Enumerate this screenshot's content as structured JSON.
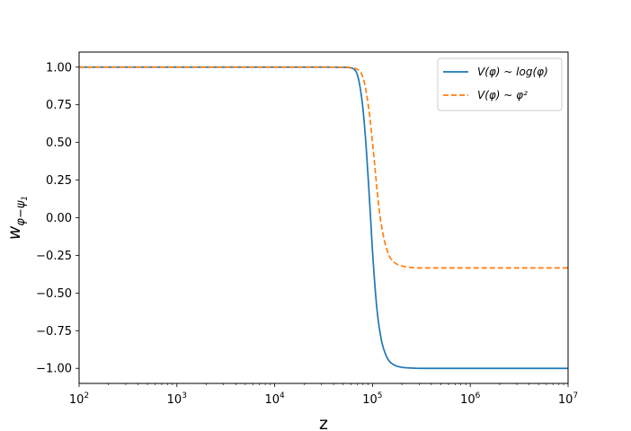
{
  "chart_data": {
    "type": "line",
    "xscale": "log",
    "xlabel": "z",
    "ylabel": "w_{φ−ψ1}",
    "xlim": [
      100,
      10000000
    ],
    "ylim": [
      -1.1,
      1.1
    ],
    "grid": false,
    "legend_position": "top-right",
    "x_ticks": [
      {
        "value": 100,
        "base": "10",
        "exp": "2"
      },
      {
        "value": 1000,
        "base": "10",
        "exp": "3"
      },
      {
        "value": 10000,
        "base": "10",
        "exp": "4"
      },
      {
        "value": 100000,
        "base": "10",
        "exp": "5"
      },
      {
        "value": 1000000,
        "base": "10",
        "exp": "6"
      },
      {
        "value": 10000000,
        "base": "10",
        "exp": "7"
      }
    ],
    "y_ticks": [
      {
        "value": 1.0,
        "label": "1.00"
      },
      {
        "value": 0.75,
        "label": "0.75"
      },
      {
        "value": 0.5,
        "label": "0.50"
      },
      {
        "value": 0.25,
        "label": "0.25"
      },
      {
        "value": 0.0,
        "label": "0.00"
      },
      {
        "value": -0.25,
        "label": "−0.25"
      },
      {
        "value": -0.5,
        "label": "−0.50"
      },
      {
        "value": -0.75,
        "label": "−0.75"
      },
      {
        "value": -1.0,
        "label": "−1.00"
      }
    ],
    "series": [
      {
        "name": "V(φ) ~ log(φ)",
        "color": "#1f77b4",
        "dash": "solid",
        "x": [
          100,
          1000,
          10000,
          30000,
          50000,
          60000,
          65000,
          70000,
          75000,
          80000,
          85000,
          90000,
          95000,
          100000,
          105000,
          110000,
          115000,
          120000,
          125000,
          130000,
          140000,
          150000,
          170000,
          200000,
          250000,
          300000,
          400000,
          1000000,
          10000000
        ],
        "y": [
          1.0,
          1.0,
          1.0,
          1.0,
          0.999,
          0.995,
          0.985,
          0.95,
          0.86,
          0.72,
          0.52,
          0.28,
          0.03,
          -0.22,
          -0.42,
          -0.58,
          -0.69,
          -0.77,
          -0.83,
          -0.87,
          -0.925,
          -0.955,
          -0.98,
          -0.993,
          -0.998,
          -1.0,
          -1.0,
          -1.0,
          -1.0
        ]
      },
      {
        "name": "V(φ) ~ φ²",
        "color": "#ff7f0e",
        "dash": "dashed",
        "x": [
          100,
          1000,
          10000,
          30000,
          50000,
          60000,
          70000,
          75000,
          80000,
          85000,
          90000,
          95000,
          100000,
          105000,
          110000,
          115000,
          120000,
          125000,
          130000,
          140000,
          150000,
          170000,
          200000,
          250000,
          300000,
          400000,
          1000000,
          10000000
        ],
        "y": [
          1.0,
          1.0,
          1.0,
          1.0,
          0.999,
          0.997,
          0.985,
          0.97,
          0.93,
          0.86,
          0.76,
          0.64,
          0.5,
          0.36,
          0.22,
          0.1,
          0.0,
          -0.07,
          -0.13,
          -0.21,
          -0.26,
          -0.3,
          -0.32,
          -0.33,
          -0.333,
          -0.333,
          -0.333,
          -0.333
        ]
      }
    ]
  }
}
